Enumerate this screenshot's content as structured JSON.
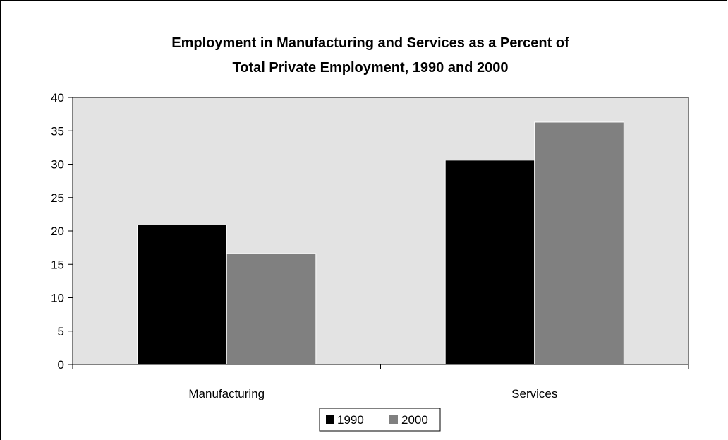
{
  "chart_data": {
    "type": "bar",
    "title_lines": [
      "Employment in Manufacturing and Services as a Percent of",
      "Total Private Employment, 1990 and 2000"
    ],
    "xlabel": "",
    "ylabel": "",
    "categories": [
      "Manufacturing",
      "Services"
    ],
    "series": [
      {
        "name": "1990",
        "values": [
          20.9,
          30.6
        ],
        "color": "#000000"
      },
      {
        "name": "2000",
        "values": [
          16.6,
          36.3
        ],
        "color": "#808080"
      }
    ],
    "ylim": [
      0,
      40
    ],
    "yticks": [
      0,
      5,
      10,
      15,
      20,
      25,
      30,
      35,
      40
    ],
    "grid": false,
    "plot_background": "#e3e3e3",
    "legend_position": "bottom"
  }
}
